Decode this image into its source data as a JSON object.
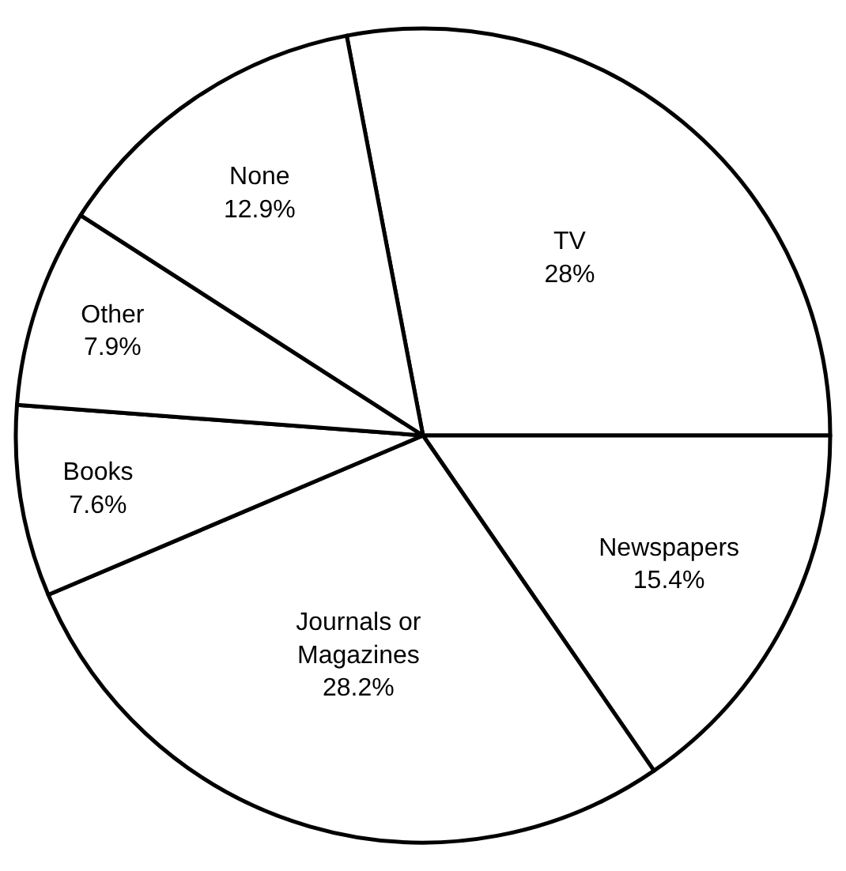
{
  "chart_data": {
    "type": "pie",
    "categories": [
      "TV",
      "Newspapers",
      "Journals or\nMagazines",
      "Books",
      "Other",
      "None"
    ],
    "values": [
      28,
      15.4,
      28.2,
      7.6,
      7.9,
      12.9
    ],
    "value_labels": [
      "28%",
      "15.4%",
      "28.2%",
      "7.6%",
      "7.9%",
      "12.9%"
    ],
    "colors": [
      "#ffffff",
      "#ffffff",
      "#ffffff",
      "#ffffff",
      "#ffffff",
      "#ffffff"
    ],
    "legend": false
  }
}
